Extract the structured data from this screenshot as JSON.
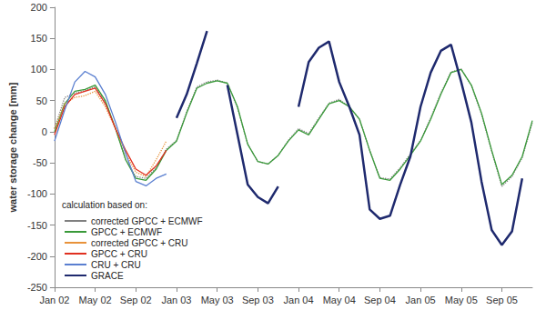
{
  "chart_data": {
    "type": "line",
    "y_label": "water storage change [mm]",
    "legend_title": "calculation based on:",
    "legend": "lower left",
    "grid": false,
    "categories": [
      "Jan 02",
      null,
      null,
      null,
      "May 02",
      null,
      null,
      null,
      "Sep 02",
      null,
      null,
      null,
      "Jan 03",
      null,
      null,
      null,
      "May 03",
      null,
      null,
      null,
      "Sep 03",
      null,
      null,
      null,
      "Jan 04",
      null,
      null,
      null,
      "May 04",
      null,
      null,
      null,
      "Sep 04",
      null,
      null,
      null,
      "Jan 05",
      null,
      null,
      null,
      "May 05",
      null,
      null,
      null,
      "Sep 05",
      null,
      null,
      null
    ],
    "ylim": [
      -250,
      200
    ],
    "yticks": [
      -250,
      -200,
      -150,
      -100,
      -50,
      0,
      50,
      100,
      150,
      200
    ],
    "series": [
      {
        "name": "corrected GPCC + ECMWF",
        "color": "#808080",
        "line_style": "dotted",
        "values": [
          5,
          55,
          62,
          66,
          72,
          48,
          5,
          -45,
          -72,
          -75,
          -58,
          -28,
          -14,
          32,
          72,
          80,
          83,
          78,
          38,
          -20,
          -48,
          -52,
          -38,
          -14,
          5,
          -3,
          22,
          46,
          52,
          40,
          20,
          -30,
          -74,
          -76,
          -58,
          -36,
          -14,
          22,
          62,
          96,
          101,
          74,
          28,
          -32,
          -88,
          -72,
          -42,
          15
        ]
      },
      {
        "name": "GPCC + ECMWF",
        "color": "#3a9a3a",
        "line_style": "solid",
        "values": [
          0,
          45,
          65,
          68,
          75,
          50,
          5,
          -45,
          -75,
          -78,
          -60,
          -30,
          -15,
          30,
          70,
          78,
          82,
          78,
          40,
          -20,
          -48,
          -52,
          -38,
          -15,
          3,
          -5,
          20,
          45,
          50,
          40,
          20,
          -30,
          -75,
          -78,
          -60,
          -38,
          -15,
          20,
          60,
          95,
          100,
          75,
          30,
          -30,
          -85,
          -70,
          -40,
          18
        ]
      },
      {
        "name": "corrected GPCC + CRU",
        "color": "#e8923a",
        "line_style": "dotted",
        "values": [
          5,
          45,
          55,
          58,
          65,
          40,
          5,
          -35,
          -65,
          -72,
          -45,
          -15,
          null,
          null,
          null,
          null,
          null,
          null,
          null,
          null,
          null,
          null,
          null,
          null,
          null,
          null,
          null,
          null,
          null,
          null,
          null,
          null,
          null,
          null,
          null,
          null,
          null,
          null,
          null,
          null,
          null,
          null,
          null,
          null,
          null,
          null,
          null,
          null
        ]
      },
      {
        "name": "GPCC + CRU",
        "color": "#e03020",
        "line_style": "solid",
        "values": [
          -5,
          40,
          60,
          65,
          70,
          45,
          5,
          -30,
          -60,
          -70,
          -55,
          -30,
          null,
          null,
          null,
          null,
          null,
          null,
          null,
          null,
          null,
          null,
          null,
          null,
          null,
          null,
          null,
          null,
          null,
          null,
          null,
          null,
          null,
          null,
          null,
          null,
          null,
          null,
          null,
          null,
          null,
          null,
          null,
          null,
          null,
          null,
          null,
          null
        ]
      },
      {
        "name": "CRU + CRU",
        "color": "#5a7fd0",
        "line_style": "solid",
        "values": [
          -15,
          35,
          80,
          97,
          88,
          60,
          15,
          -35,
          -80,
          -87,
          -75,
          -68,
          null,
          null,
          null,
          null,
          null,
          null,
          null,
          null,
          null,
          null,
          null,
          null,
          null,
          null,
          null,
          null,
          null,
          null,
          null,
          null,
          null,
          null,
          null,
          null,
          null,
          null,
          null,
          null,
          null,
          null,
          null,
          null,
          null,
          null,
          null,
          null
        ]
      },
      {
        "name": "GRACE",
        "color": "#1f2a6e",
        "line_style": "solid",
        "values": [
          null,
          null,
          null,
          null,
          null,
          null,
          null,
          null,
          null,
          null,
          null,
          null,
          22,
          60,
          110,
          162,
          null,
          75,
          -5,
          -85,
          -105,
          -115,
          -88,
          null,
          40,
          112,
          135,
          145,
          80,
          40,
          -5,
          -125,
          -140,
          -135,
          -85,
          -40,
          40,
          95,
          130,
          140,
          80,
          15,
          -80,
          -158,
          -182,
          -160,
          -75,
          null
        ]
      }
    ]
  }
}
